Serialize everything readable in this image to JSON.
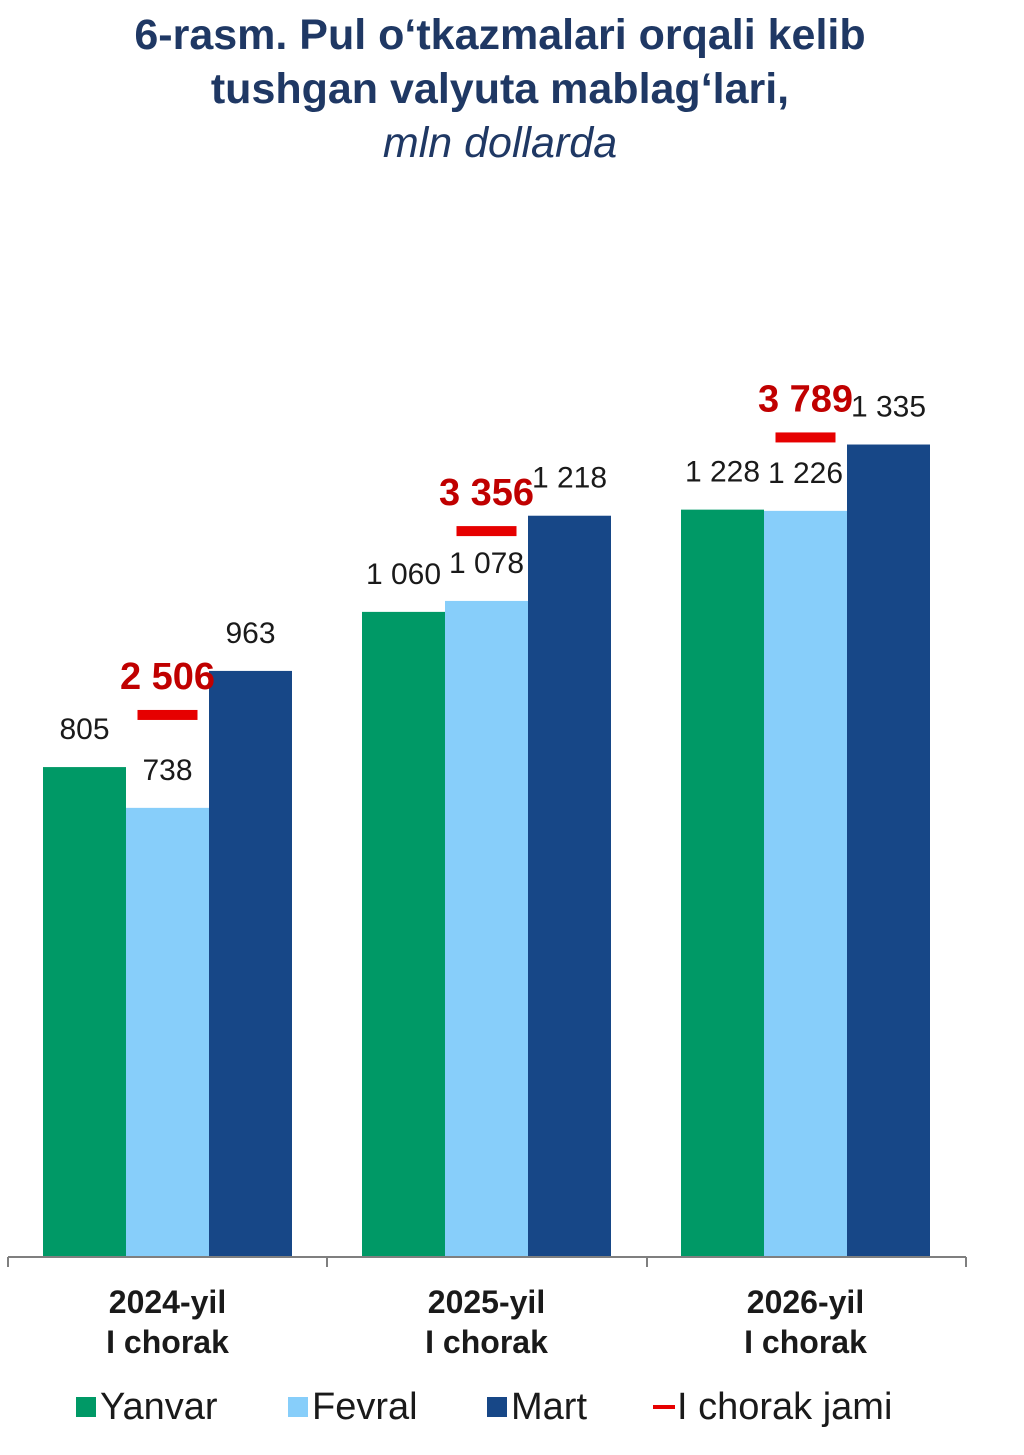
{
  "title": {
    "line1": "6-rasm. Pul o‘tkazmalari orqali kelib",
    "line2": "tushgan valyuta mablag‘lari,",
    "unit": "mln dollarda"
  },
  "colors": {
    "yanvar": "#009966",
    "fevral": "#87cefa",
    "mart": "#174787",
    "total": "#e60000"
  },
  "chart_data": {
    "type": "bar",
    "categories": [
      [
        "2024-yil",
        "I chorak"
      ],
      [
        "2025-yil",
        "I chorak"
      ],
      [
        "2026-yil",
        "I chorak"
      ]
    ],
    "series": [
      {
        "name": "Yanvar",
        "values": [
          805,
          1060,
          1228
        ],
        "labels": [
          "805",
          "1 060",
          "1 228"
        ]
      },
      {
        "name": "Fevral",
        "values": [
          738,
          1078,
          1226
        ],
        "labels": [
          "738",
          "1 078",
          "1 226"
        ]
      },
      {
        "name": "Mart",
        "values": [
          963,
          1218,
          1335
        ],
        "labels": [
          "963",
          "1 218",
          "1 335"
        ]
      }
    ],
    "totals": {
      "name": "I chorak jami",
      "values": [
        2506,
        3356,
        3789
      ],
      "labels": [
        "2 506",
        "3 356",
        "3 789"
      ]
    },
    "legend_position": "bottom",
    "grid": false
  }
}
